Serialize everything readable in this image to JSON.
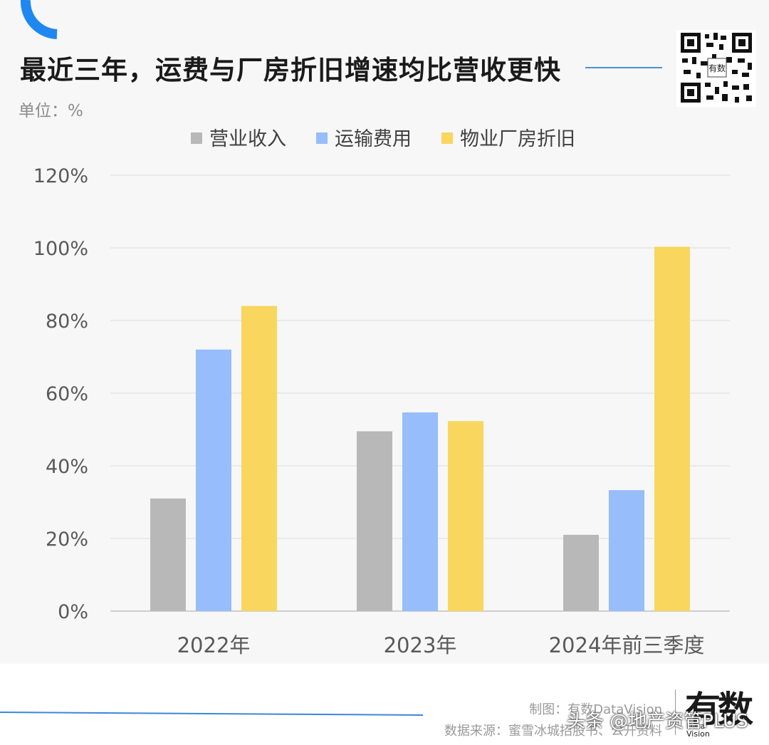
{
  "header": {
    "title": "最近三年，运费与厂房折旧增速均比营收更快",
    "unit": "单位：%"
  },
  "chart_data": {
    "type": "bar",
    "categories": [
      "2022年",
      "2023年",
      "2024年前三季度"
    ],
    "series": [
      {
        "name": "营业收入",
        "color": "#b8b8b8",
        "values": [
          31,
          49.5,
          21
        ]
      },
      {
        "name": "运输费用",
        "color": "#97bdfb",
        "values": [
          72,
          54.7,
          33.3
        ]
      },
      {
        "name": "物业厂房折旧",
        "color": "#f9d65e",
        "values": [
          84,
          52.3,
          100.3
        ]
      }
    ],
    "y_ticks": [
      "0%",
      "20%",
      "40%",
      "60%",
      "80%",
      "100%",
      "120%"
    ],
    "ylim": [
      0,
      120
    ],
    "grid": true,
    "legend": "top-center"
  },
  "footer": {
    "maker": "制图：有数DataVision",
    "source": "数据来源：蜜雪冰城招股书、公开资料",
    "brand": "有数",
    "brand_sub": "Data Vision",
    "watermark": "头条 @地产资管PLUS"
  },
  "colors": {
    "accent": "#1e88f0",
    "line": "#4a8fd6"
  }
}
